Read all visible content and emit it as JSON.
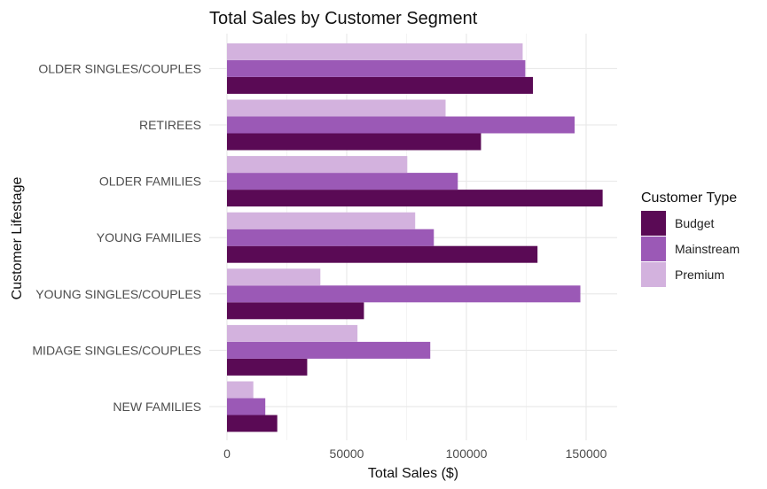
{
  "chart_data": {
    "type": "bar",
    "orientation": "horizontal",
    "title": "Total Sales by Customer Segment",
    "xlabel": "Total Sales ($)",
    "ylabel": "Customer Lifestage",
    "xlim": [
      0,
      160000
    ],
    "xticks": [
      0,
      50000,
      100000,
      150000
    ],
    "xtick_labels": [
      "0",
      "50000",
      "100000",
      "150000"
    ],
    "grid": true,
    "legend_title": "Customer Type",
    "legend_position": "right",
    "categories": [
      "NEW FAMILIES",
      "MIDAGE SINGLES/COUPLES",
      "YOUNG SINGLES/COUPLES",
      "YOUNG FAMILIES",
      "OLDER FAMILIES",
      "RETIREES",
      "OLDER SINGLES/COUPLES"
    ],
    "series": [
      {
        "name": "Budget",
        "color": "#5a0a55",
        "values": [
          21000,
          33500,
          57200,
          129700,
          156900,
          106100,
          127800
        ]
      },
      {
        "name": "Mainstream",
        "color": "#9b59b6",
        "values": [
          16000,
          84900,
          147600,
          86400,
          96400,
          145200,
          124600
        ]
      },
      {
        "name": "Premium",
        "color": "#d3b2de",
        "values": [
          11000,
          54500,
          39000,
          78600,
          75300,
          91300,
          123500
        ]
      }
    ]
  }
}
